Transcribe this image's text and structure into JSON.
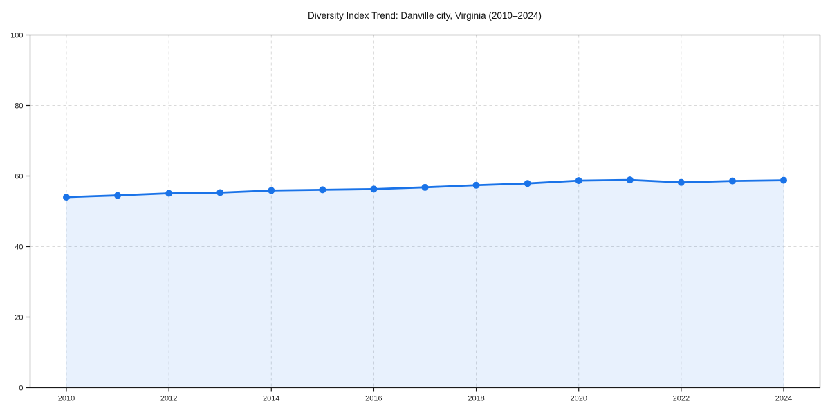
{
  "chart_data": {
    "type": "area",
    "title": "Diversity Index Trend: Danville city, Virginia (2010–2024)",
    "series_name": "Diversity Index",
    "x": [
      2010,
      2011,
      2012,
      2013,
      2014,
      2015,
      2016,
      2017,
      2018,
      2019,
      2020,
      2021,
      2022,
      2023,
      2024
    ],
    "values": [
      54.0,
      54.5,
      55.1,
      55.3,
      55.9,
      56.1,
      56.3,
      56.8,
      57.4,
      57.9,
      58.7,
      58.9,
      58.2,
      58.6,
      58.8
    ],
    "xlabel": "",
    "ylabel": "",
    "ylim": [
      0,
      100
    ],
    "yticks": [
      0,
      20,
      40,
      60,
      80,
      100
    ],
    "xticks": [
      2010,
      2012,
      2014,
      2016,
      2018,
      2020,
      2022,
      2024
    ],
    "grid": "dashed",
    "legend": "none",
    "colors": {
      "line": "#1a73e8",
      "marker": "#1a73e8",
      "fill": "#1a73e8",
      "fill_opacity": "0.10",
      "grid": "#d9d9d9",
      "axis": "#1a1a1a",
      "tick_label": "#1f1f1f",
      "title": "#111111",
      "background": "#ffffff"
    }
  }
}
